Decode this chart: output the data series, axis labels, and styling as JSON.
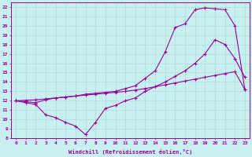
{
  "xlabel": "Windchill (Refroidissement éolien,°C)",
  "ylabel": "",
  "bg_color": "#c8f0f0",
  "line_color": "#990099",
  "grid_color": "#aadddd",
  "xlim": [
    -0.5,
    23.5
  ],
  "ylim": [
    8,
    22.5
  ],
  "xticks": [
    0,
    1,
    2,
    3,
    4,
    5,
    6,
    7,
    8,
    9,
    10,
    11,
    12,
    13,
    14,
    15,
    16,
    17,
    18,
    19,
    20,
    21,
    22,
    23
  ],
  "yticks": [
    8,
    9,
    10,
    11,
    12,
    13,
    14,
    15,
    16,
    17,
    18,
    19,
    20,
    21,
    22
  ],
  "line1_x": [
    0,
    1,
    2,
    3,
    4,
    5,
    6,
    7,
    8,
    9,
    10,
    11,
    12,
    13,
    14,
    15,
    16,
    17,
    18,
    19,
    20,
    21,
    22,
    23
  ],
  "line1_y": [
    12,
    11.8,
    11.6,
    10.5,
    10.2,
    9.7,
    9.3,
    8.4,
    9.7,
    11.2,
    11.5,
    12.0,
    12.3,
    13.0,
    13.5,
    14.0,
    14.6,
    15.2,
    16.0,
    17.0,
    18.5,
    18.0,
    16.5,
    14.5
  ],
  "line2_x": [
    0,
    1,
    2,
    3,
    4,
    5,
    6,
    7,
    8,
    9,
    10,
    11,
    12,
    13,
    14,
    15,
    16,
    17,
    18,
    19,
    20,
    21,
    22,
    23
  ],
  "line2_y": [
    12,
    12.05,
    12.1,
    12.2,
    12.3,
    12.4,
    12.5,
    12.6,
    12.7,
    12.8,
    12.9,
    13.0,
    13.15,
    13.3,
    13.5,
    13.7,
    13.9,
    14.1,
    14.3,
    14.5,
    14.7,
    14.9,
    15.1,
    13.2
  ],
  "line3_x": [
    0,
    1,
    2,
    3,
    4,
    5,
    6,
    7,
    8,
    9,
    10,
    11,
    12,
    13,
    14,
    15,
    16,
    17,
    18,
    19,
    20,
    21,
    22,
    23
  ],
  "line3_y": [
    12,
    11.9,
    11.8,
    12.1,
    12.3,
    12.4,
    12.5,
    12.7,
    12.8,
    12.9,
    13.0,
    13.3,
    13.6,
    14.4,
    15.2,
    17.2,
    19.8,
    20.2,
    21.7,
    21.9,
    21.8,
    21.7,
    20.0,
    13.2
  ]
}
